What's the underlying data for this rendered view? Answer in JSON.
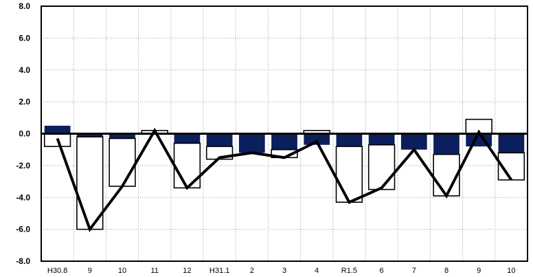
{
  "chart_data": {
    "type": "bar",
    "categories": [
      "H30.8",
      "9",
      "10",
      "11",
      "12",
      "H31.1",
      "2",
      "3",
      "4",
      "R1.5",
      "6",
      "7",
      "8",
      "9",
      "10"
    ],
    "series": [
      {
        "kind": "stacked-bar-navy",
        "values": [
          0.5,
          -0.2,
          -0.3,
          0.0,
          -0.6,
          -0.8,
          -1.2,
          -1.0,
          -0.7,
          -0.8,
          -0.7,
          -1.0,
          -1.3,
          -0.8,
          -1.2
        ]
      },
      {
        "kind": "stacked-bar-white",
        "values": [
          -0.8,
          -5.8,
          -3.0,
          0.2,
          -2.8,
          -0.8,
          0.0,
          -0.5,
          0.2,
          -3.5,
          -2.8,
          0.0,
          -2.6,
          0.9,
          -1.7
        ]
      },
      {
        "kind": "line",
        "values": [
          -0.3,
          -6.0,
          -3.3,
          0.2,
          -3.4,
          -1.5,
          -1.2,
          -1.5,
          -0.5,
          -4.3,
          -3.4,
          -1.0,
          -3.9,
          0.1,
          -2.9
        ]
      }
    ],
    "ylim": [
      -8.0,
      8.0
    ],
    "yticks": [
      "8.0",
      "6.0",
      "4.0",
      "2.0",
      "0.0",
      "-2.0",
      "-4.0",
      "-6.0",
      "-8.0"
    ],
    "grid": true,
    "colors": {
      "navy": "#0b1f5c",
      "white": "#ffffff",
      "line": "#000000",
      "grid": "#999999"
    }
  }
}
